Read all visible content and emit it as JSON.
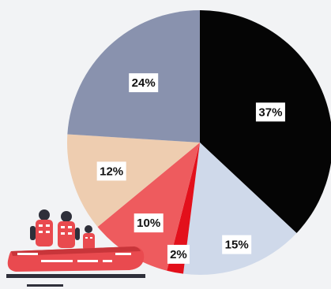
{
  "chart_data": {
    "type": "pie",
    "start_angle_deg": 0,
    "direction": "clockwise",
    "slices": [
      {
        "label": "37%",
        "value": 37,
        "color": "#050505"
      },
      {
        "label": "15%",
        "value": 15,
        "color": "#cfd9ea"
      },
      {
        "label": "2%",
        "value": 2,
        "color": "#e3101b"
      },
      {
        "label": "10%",
        "value": 10,
        "color": "#ee5b5e"
      },
      {
        "label": "12%",
        "value": 12,
        "color": "#eecdb0"
      },
      {
        "label": "24%",
        "value": 24,
        "color": "#8992ae"
      }
    ]
  },
  "illustration": {
    "name": "rescue-boat-illustration",
    "colors": {
      "boat": "#e94a4f",
      "dark": "#2e2f3a",
      "stripe": "#ffffff",
      "accent": "#c8353a"
    }
  }
}
